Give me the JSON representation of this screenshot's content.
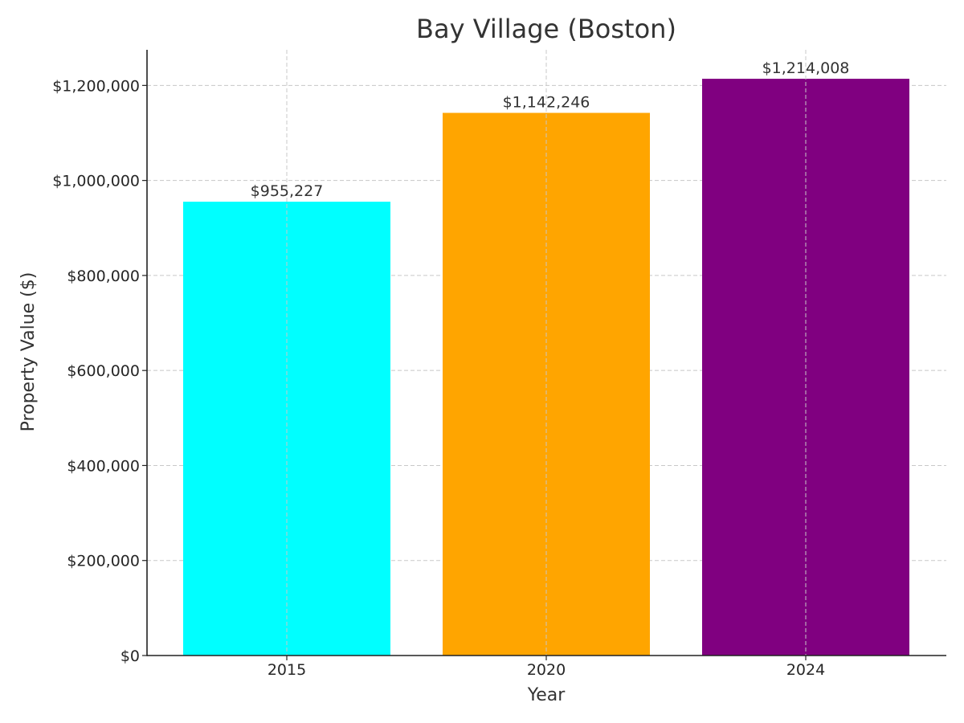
{
  "chart_data": {
    "type": "bar",
    "title": "Bay Village (Boston)",
    "xlabel": "Year",
    "ylabel": "Property Value ($)",
    "categories": [
      "2015",
      "2020",
      "2024"
    ],
    "values": [
      955227,
      1142246,
      1214008
    ],
    "value_labels": [
      "$955,227",
      "$1,142,246",
      "$1,214,008"
    ],
    "colors": [
      "#00ffff",
      "#ffa500",
      "#800080"
    ],
    "ylim": [
      0,
      1275000
    ],
    "yticks": [
      0,
      200000,
      400000,
      600000,
      800000,
      1000000,
      1200000
    ],
    "ytick_labels": [
      "$0",
      "$200,000",
      "$400,000",
      "$600,000",
      "$800,000",
      "$1,000,000",
      "$1,200,000"
    ],
    "grid": true,
    "legend": "none"
  }
}
